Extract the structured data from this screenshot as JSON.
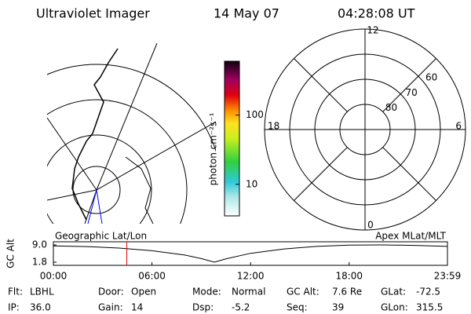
{
  "header": {
    "title": "Ultraviolet Imager",
    "date": "14 May 07",
    "time": "04:28:08 UT"
  },
  "colorbar": {
    "label": "photon cm⁻²s⁻¹",
    "ticks": [
      100,
      10
    ],
    "range": [
      3.5,
      600
    ]
  },
  "polar": {
    "mlt_labels": {
      "top": "12",
      "left": "18",
      "right": "6",
      "bottom": "0"
    },
    "lat_rings": [
      80,
      70,
      60
    ],
    "lat_limit": 50
  },
  "timeline": {
    "left_label": "Geographic Lat/Lon",
    "right_label": "Apex MLat/MLT",
    "y_label": "GC Alt",
    "yticks": [
      {
        "value": 9,
        "label": "9.0"
      },
      {
        "value": 1.8,
        "label": "1.8"
      }
    ],
    "ylim": [
      1.8,
      9
    ],
    "xlim": [
      0,
      23.983
    ],
    "xticks": [
      {
        "value": 0,
        "label": "00:00"
      },
      {
        "value": 6,
        "label": "06:00"
      },
      {
        "value": 12,
        "label": "12:00"
      },
      {
        "value": 18,
        "label": "18:00"
      },
      {
        "value": 23.983,
        "label": "23:59"
      }
    ],
    "x": [
      0,
      2,
      4,
      6,
      8,
      9,
      9.8,
      10.5,
      12,
      14,
      16,
      18,
      20,
      22,
      23.983
    ],
    "values": [
      8.6,
      8.3,
      7.7,
      6.6,
      4.8,
      3.3,
      1.8,
      3.2,
      5.5,
      7.3,
      8.4,
      8.9,
      9.0,
      8.8,
      8.4
    ],
    "marker_time": 4.469
  },
  "footer": {
    "rows": [
      [
        {
          "label": "Flt:",
          "value": "LBHL"
        },
        {
          "label": "Door:",
          "value": "Open"
        },
        {
          "label": "Mode:",
          "value": "Normal"
        },
        {
          "label": "GC Alt:",
          "value": "7.6 Re"
        },
        {
          "label": "GLat:",
          "value": "-72.5"
        }
      ],
      [
        {
          "label": "IP:",
          "value": "36.0"
        },
        {
          "label": "Gain:",
          "value": "14"
        },
        {
          "label": "Dsp:",
          "value": "-5.2"
        },
        {
          "label": "Seq:",
          "value": "39"
        },
        {
          "label": "GLon:",
          "value": "315.5"
        }
      ]
    ]
  }
}
